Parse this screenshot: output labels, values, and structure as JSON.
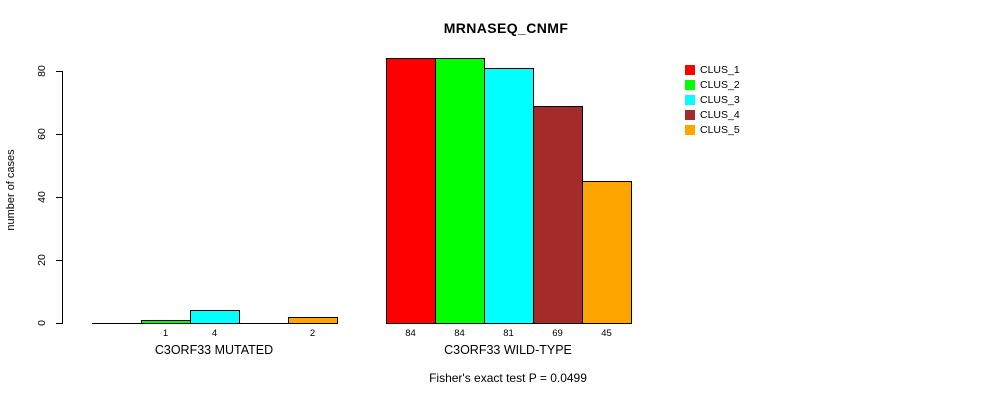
{
  "title": "MRNASEQ_CNMF",
  "footer": "Fisher's exact test P = 0.0499",
  "y_axis": {
    "label": "number of cases",
    "ticks": [
      0,
      20,
      40,
      60,
      80
    ]
  },
  "legend": {
    "items": [
      {
        "label": "CLUS_1",
        "color": "#FF0000"
      },
      {
        "label": "CLUS_2",
        "color": "#00FF00"
      },
      {
        "label": "CLUS_3",
        "color": "#00FFFF"
      },
      {
        "label": "CLUS_4",
        "color": "#A52A2A"
      },
      {
        "label": "CLUS_5",
        "color": "#FFA500"
      }
    ]
  },
  "chart_data": {
    "type": "bar",
    "title": "MRNASEQ_CNMF",
    "xlabel": "",
    "ylabel": "number of cases",
    "ylim": [
      0,
      84
    ],
    "yticks": [
      0,
      20,
      40,
      60,
      80
    ],
    "grid": false,
    "legend_position": "right",
    "categories": [
      "C3ORF33 MUTATED",
      "C3ORF33 WILD-TYPE"
    ],
    "series": [
      {
        "name": "CLUS_1",
        "color": "#FF0000",
        "values": [
          0,
          84
        ]
      },
      {
        "name": "CLUS_2",
        "color": "#00FF00",
        "values": [
          1,
          84
        ]
      },
      {
        "name": "CLUS_3",
        "color": "#00FFFF",
        "values": [
          4,
          81
        ]
      },
      {
        "name": "CLUS_4",
        "color": "#A52A2A",
        "values": [
          0,
          69
        ]
      },
      {
        "name": "CLUS_5",
        "color": "#FFA500",
        "values": [
          2,
          45
        ]
      }
    ],
    "bar_value_labels": {
      "C3ORF33 MUTATED": [
        1,
        4,
        2
      ],
      "C3ORF33 WILD-TYPE": [
        84,
        84,
        81,
        69,
        45
      ],
      "note": "labels shown under bars for nonzero values only"
    },
    "annotation": "Fisher's exact test P = 0.0499"
  }
}
